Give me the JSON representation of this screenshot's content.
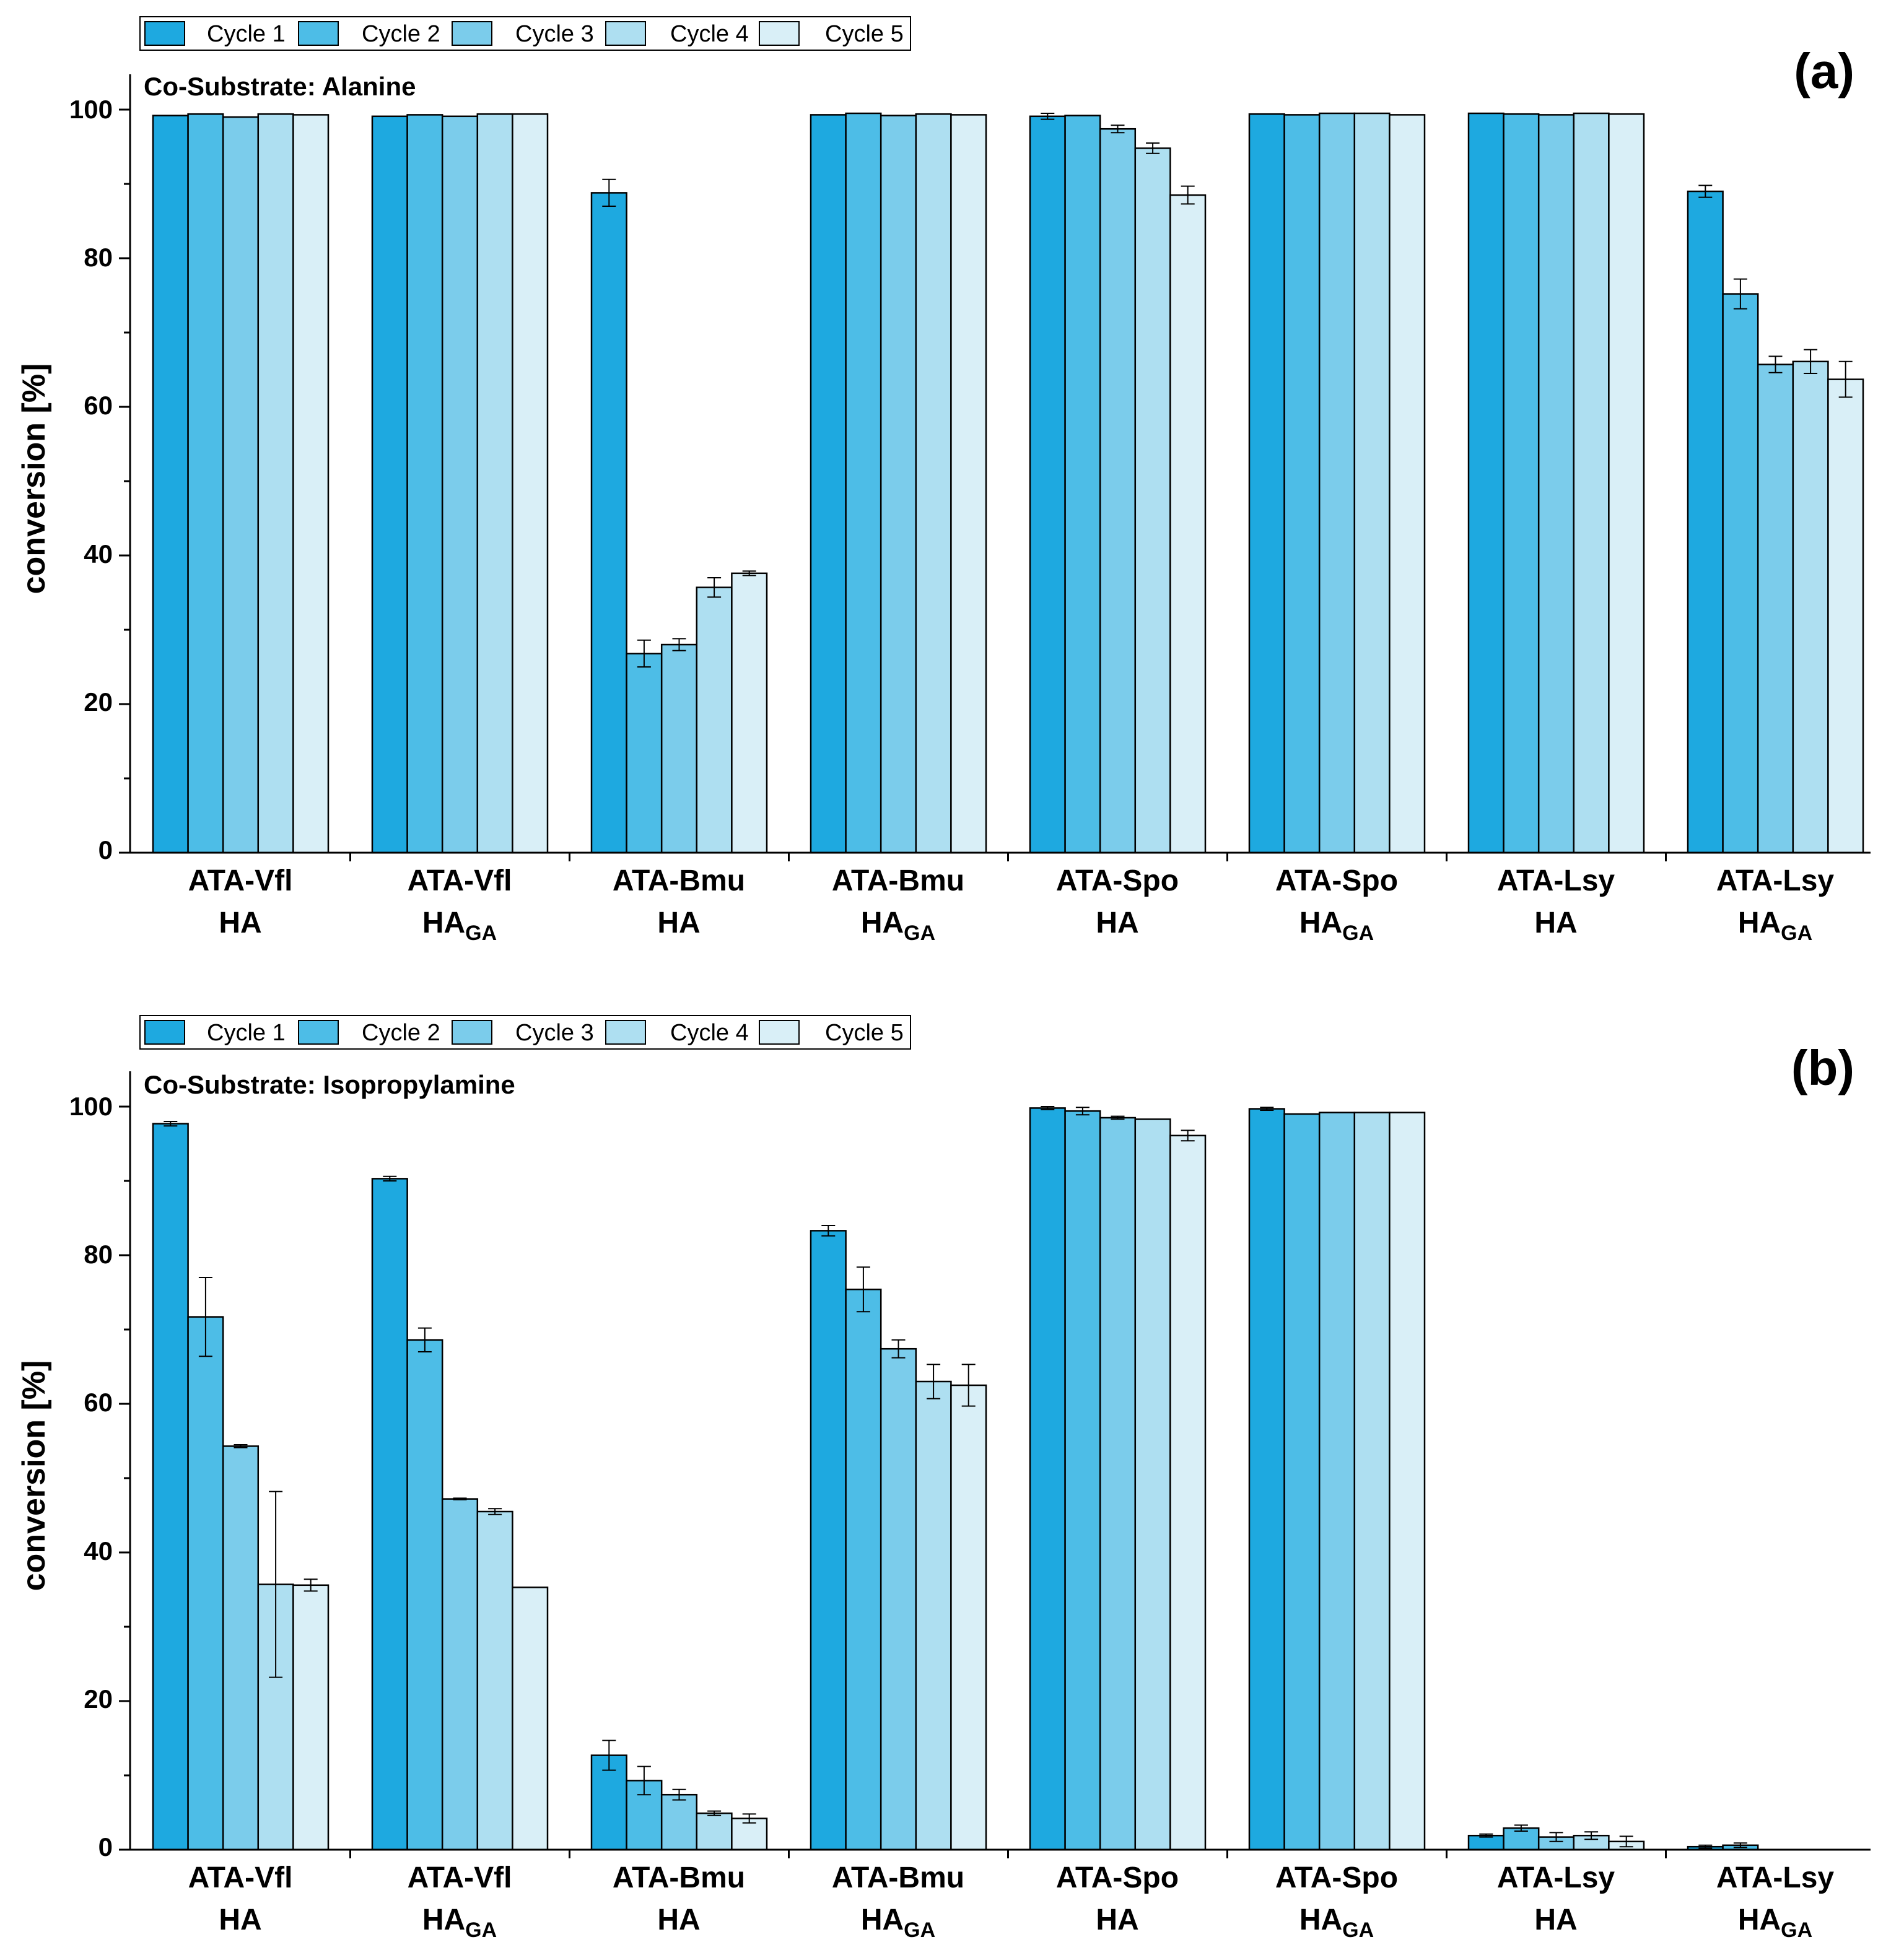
{
  "colors": {
    "cycle1": "#1EA9E0",
    "cycle2": "#4DBDE7",
    "cycle3": "#7BCCEB",
    "cycle4": "#AEDFF1",
    "cycle5": "#D9EFF7",
    "stroke": "#000000"
  },
  "chart_data": [
    {
      "type": "bar",
      "panel_label": "(a)",
      "annotation": "Co-Substrate: Alanine",
      "ylabel": "conversion [%]",
      "xlabel": "",
      "ylim": [
        0,
        100
      ],
      "yticks": [
        0,
        20,
        40,
        60,
        80,
        100
      ],
      "grid": false,
      "legend_position": "top-left",
      "categories": [
        {
          "name": "ATA-Vfl",
          "sub": "HA",
          "subscript": ""
        },
        {
          "name": "ATA-Vfl",
          "sub": "HA",
          "subscript": "GA"
        },
        {
          "name": "ATA-Bmu",
          "sub": "HA",
          "subscript": ""
        },
        {
          "name": "ATA-Bmu",
          "sub": "HA",
          "subscript": "GA"
        },
        {
          "name": "ATA-Spo",
          "sub": "HA",
          "subscript": ""
        },
        {
          "name": "ATA-Spo",
          "sub": "HA",
          "subscript": "GA"
        },
        {
          "name": "ATA-Lsy",
          "sub": "HA",
          "subscript": ""
        },
        {
          "name": "ATA-Lsy",
          "sub": "HA",
          "subscript": "GA"
        }
      ],
      "series": [
        {
          "name": "Cycle 1",
          "values": [
            99.2,
            99.1,
            88.8,
            99.3,
            99.1,
            99.4,
            99.5,
            89.0
          ],
          "errors": [
            0.0,
            0.0,
            1.8,
            0.0,
            0.4,
            0.0,
            0.0,
            0.8
          ]
        },
        {
          "name": "Cycle 2",
          "values": [
            99.4,
            99.3,
            26.8,
            99.5,
            99.2,
            99.3,
            99.4,
            75.2
          ],
          "errors": [
            0.0,
            0.0,
            1.8,
            0.0,
            0.0,
            0.0,
            0.0,
            2.0
          ]
        },
        {
          "name": "Cycle 3",
          "values": [
            99.0,
            99.1,
            28.0,
            99.2,
            97.4,
            99.5,
            99.3,
            65.7
          ],
          "errors": [
            0.0,
            0.0,
            0.8,
            0.0,
            0.5,
            0.0,
            0.0,
            1.1
          ]
        },
        {
          "name": "Cycle 4",
          "values": [
            99.4,
            99.4,
            35.7,
            99.4,
            94.8,
            99.5,
            99.5,
            66.1
          ],
          "errors": [
            0.0,
            0.0,
            1.3,
            0.0,
            0.7,
            0.0,
            0.0,
            1.6
          ]
        },
        {
          "name": "Cycle 5",
          "values": [
            99.3,
            99.4,
            37.6,
            99.3,
            88.5,
            99.3,
            99.4,
            63.7
          ],
          "errors": [
            0.0,
            0.0,
            0.3,
            0.0,
            1.2,
            0.0,
            0.0,
            2.4
          ]
        }
      ]
    },
    {
      "type": "bar",
      "panel_label": "(b)",
      "annotation": "Co-Substrate: Isopropylamine",
      "ylabel": "conversion [%]",
      "xlabel": "",
      "ylim": [
        0,
        100
      ],
      "yticks": [
        0,
        20,
        40,
        60,
        80,
        100
      ],
      "grid": false,
      "legend_position": "top-left",
      "categories": [
        {
          "name": "ATA-Vfl",
          "sub": "HA",
          "subscript": ""
        },
        {
          "name": "ATA-Vfl",
          "sub": "HA",
          "subscript": "GA"
        },
        {
          "name": "ATA-Bmu",
          "sub": "HA",
          "subscript": ""
        },
        {
          "name": "ATA-Bmu",
          "sub": "HA",
          "subscript": "GA"
        },
        {
          "name": "ATA-Spo",
          "sub": "HA",
          "subscript": ""
        },
        {
          "name": "ATA-Spo",
          "sub": "HA",
          "subscript": "GA"
        },
        {
          "name": "ATA-Lsy",
          "sub": "HA",
          "subscript": ""
        },
        {
          "name": "ATA-Lsy",
          "sub": "HA",
          "subscript": "GA"
        }
      ],
      "series": [
        {
          "name": "Cycle 1",
          "values": [
            97.7,
            90.3,
            12.7,
            83.3,
            99.8,
            99.7,
            1.9,
            0.4
          ],
          "errors": [
            0.3,
            0.3,
            2.0,
            0.7,
            0.2,
            0.2,
            0.2,
            0.2
          ]
        },
        {
          "name": "Cycle 2",
          "values": [
            71.7,
            68.6,
            9.3,
            75.4,
            99.4,
            99.0,
            2.9,
            0.6
          ],
          "errors": [
            5.3,
            1.6,
            1.9,
            3.0,
            0.5,
            0.0,
            0.4,
            0.3
          ]
        },
        {
          "name": "Cycle 3",
          "values": [
            54.3,
            47.2,
            7.4,
            67.4,
            98.5,
            99.2,
            1.7,
            0.0
          ],
          "errors": [
            0.2,
            0.1,
            0.7,
            1.2,
            0.2,
            0.0,
            0.6,
            0.0
          ]
        },
        {
          "name": "Cycle 4",
          "values": [
            35.7,
            45.5,
            4.9,
            63.0,
            98.3,
            99.2,
            1.9,
            0.0
          ],
          "errors": [
            12.5,
            0.4,
            0.3,
            2.3,
            0.0,
            0.0,
            0.5,
            0.0
          ]
        },
        {
          "name": "Cycle 5",
          "values": [
            35.6,
            35.3,
            4.2,
            62.5,
            96.1,
            99.2,
            1.1,
            0.0
          ],
          "errors": [
            0.8,
            0.0,
            0.6,
            2.8,
            0.7,
            0.0,
            0.7,
            0.0
          ]
        }
      ]
    }
  ]
}
